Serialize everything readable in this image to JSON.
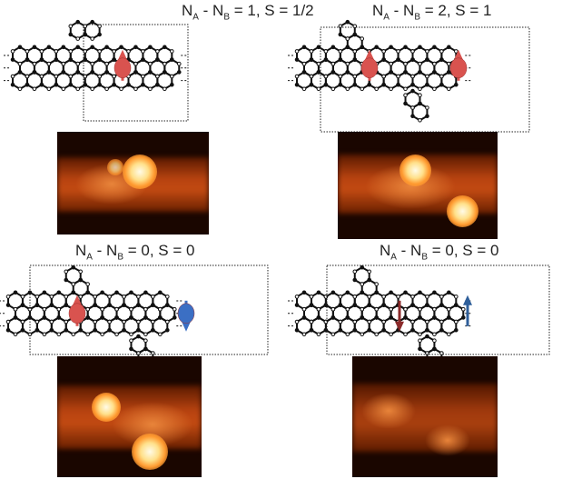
{
  "panels": [
    {
      "title": {
        "n1": "N",
        "a": "A",
        "n2": " - N",
        "b": "B",
        "rest": " = 1, S = 1/2"
      },
      "spins": [
        {
          "dir": "up",
          "color": "#d9534f"
        }
      ]
    },
    {
      "title": {
        "n1": "N",
        "a": "A",
        "n2": " - N",
        "b": "B",
        "rest": " = 2, S = 1"
      },
      "spins": [
        {
          "dir": "up",
          "color": "#d9534f"
        },
        {
          "dir": "up",
          "color": "#d9534f"
        }
      ]
    },
    {
      "title": {
        "n1": "N",
        "a": "A",
        "n2": " - N",
        "b": "B",
        "rest": " = 0, S = 0"
      },
      "spins": [
        {
          "dir": "up",
          "color": "#d9534f"
        },
        {
          "dir": "down",
          "color": "#3b6fc4"
        }
      ]
    },
    {
      "title": {
        "n1": "N",
        "a": "A",
        "n2": " - N",
        "b": "B",
        "rest": " = 0, S = 0"
      },
      "spins": [
        {
          "dir": "down",
          "color": "#8b2a2a"
        },
        {
          "dir": "up",
          "color": "#2f5f9a"
        }
      ]
    }
  ]
}
